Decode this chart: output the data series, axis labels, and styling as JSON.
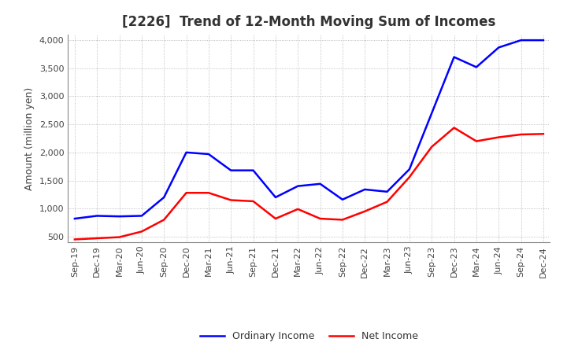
{
  "title": "[2226]  Trend of 12-Month Moving Sum of Incomes",
  "ylabel": "Amount (million yen)",
  "x_labels": [
    "Sep-19",
    "Dec-19",
    "Mar-20",
    "Jun-20",
    "Sep-20",
    "Dec-20",
    "Mar-21",
    "Jun-21",
    "Sep-21",
    "Dec-21",
    "Mar-22",
    "Jun-22",
    "Sep-22",
    "Dec-22",
    "Mar-23",
    "Jun-23",
    "Sep-23",
    "Dec-23",
    "Mar-24",
    "Jun-24",
    "Sep-24",
    "Dec-24"
  ],
  "ordinary_income": [
    820,
    870,
    860,
    870,
    1200,
    2000,
    1970,
    1680,
    1680,
    1200,
    1400,
    1440,
    1160,
    1340,
    1300,
    1700,
    2700,
    3700,
    3520,
    3870,
    4000,
    4000
  ],
  "net_income": [
    450,
    470,
    490,
    590,
    800,
    1280,
    1280,
    1150,
    1130,
    820,
    990,
    820,
    800,
    950,
    1120,
    1560,
    2100,
    2440,
    2200,
    2270,
    2320,
    2330
  ],
  "ordinary_color": "#0000FF",
  "net_color": "#FF0000",
  "ylim": [
    400,
    4100
  ],
  "yticks": [
    500,
    1000,
    1500,
    2000,
    2500,
    3000,
    3500,
    4000
  ],
  "background_color": "#FFFFFF",
  "grid_color": "#999999",
  "title_fontsize": 12,
  "title_color": "#333333",
  "axis_fontsize": 8,
  "legend_fontsize": 9,
  "line_width": 1.8
}
